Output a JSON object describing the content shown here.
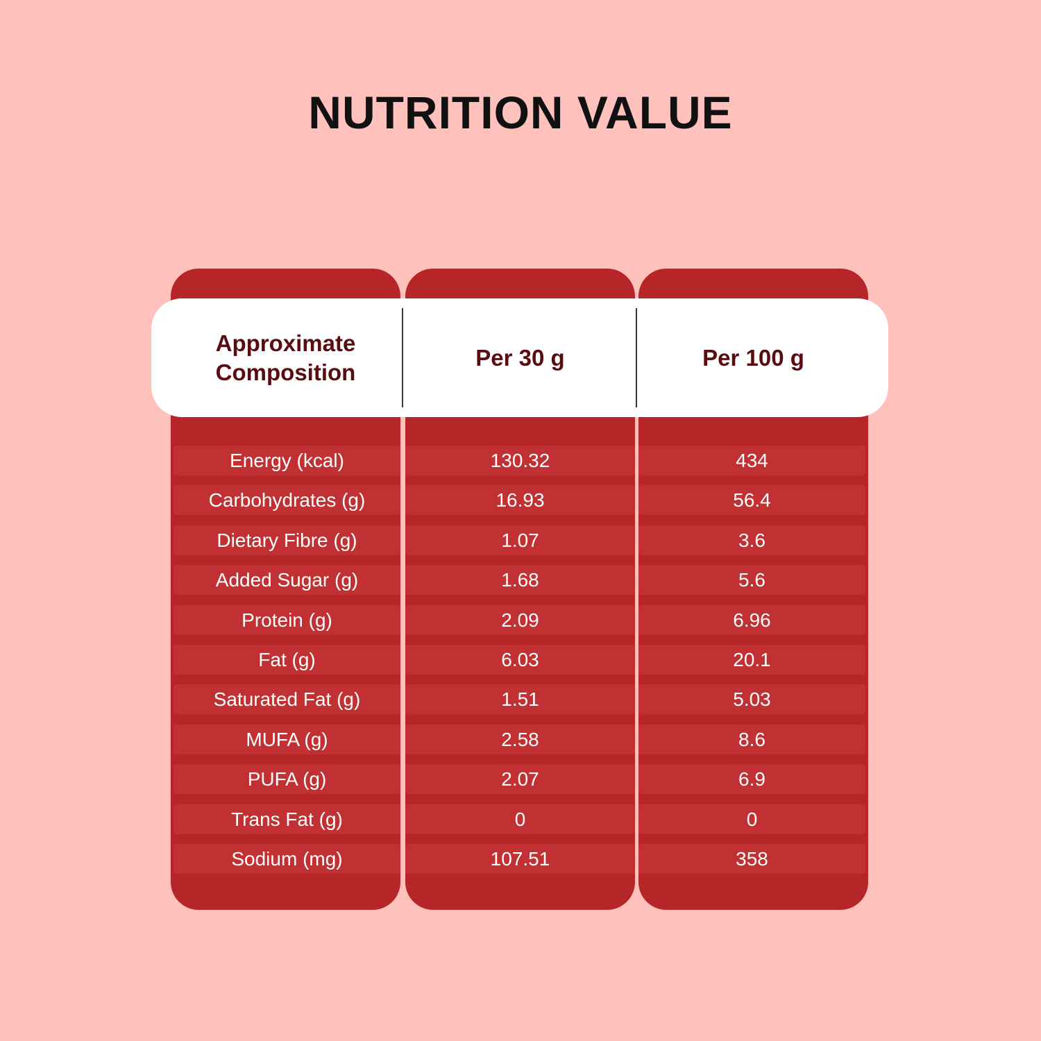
{
  "title": "NUTRITION VALUE",
  "colors": {
    "background": "#ffc1bc",
    "column": "#b62528",
    "row_strip": "#c13033",
    "header_bg": "#ffffff",
    "header_text": "#5a0c10",
    "title_text": "#111111",
    "cell_text": "#ffffff"
  },
  "table": {
    "headers": {
      "composition_line1": "Approximate",
      "composition_line2": "Composition",
      "per30": "Per 30 g",
      "per100": "Per 100 g"
    },
    "rows": [
      {
        "name": "Energy (kcal)",
        "per30": "130.32",
        "per100": "434"
      },
      {
        "name": "Carbohydrates (g)",
        "per30": "16.93",
        "per100": "56.4"
      },
      {
        "name": "Dietary Fibre (g)",
        "per30": "1.07",
        "per100": "3.6"
      },
      {
        "name": "Added Sugar (g)",
        "per30": "1.68",
        "per100": "5.6"
      },
      {
        "name": "Protein (g)",
        "per30": "2.09",
        "per100": "6.96"
      },
      {
        "name": "Fat (g)",
        "per30": "6.03",
        "per100": "20.1"
      },
      {
        "name": "Saturated Fat (g)",
        "per30": "1.51",
        "per100": "5.03"
      },
      {
        "name": "MUFA (g)",
        "per30": "2.58",
        "per100": "8.6"
      },
      {
        "name": "PUFA (g)",
        "per30": "2.07",
        "per100": "6.9"
      },
      {
        "name": "Trans Fat (g)",
        "per30": "0",
        "per100": "0"
      },
      {
        "name": "Sodium (mg)",
        "per30": "107.51",
        "per100": "358"
      }
    ]
  }
}
